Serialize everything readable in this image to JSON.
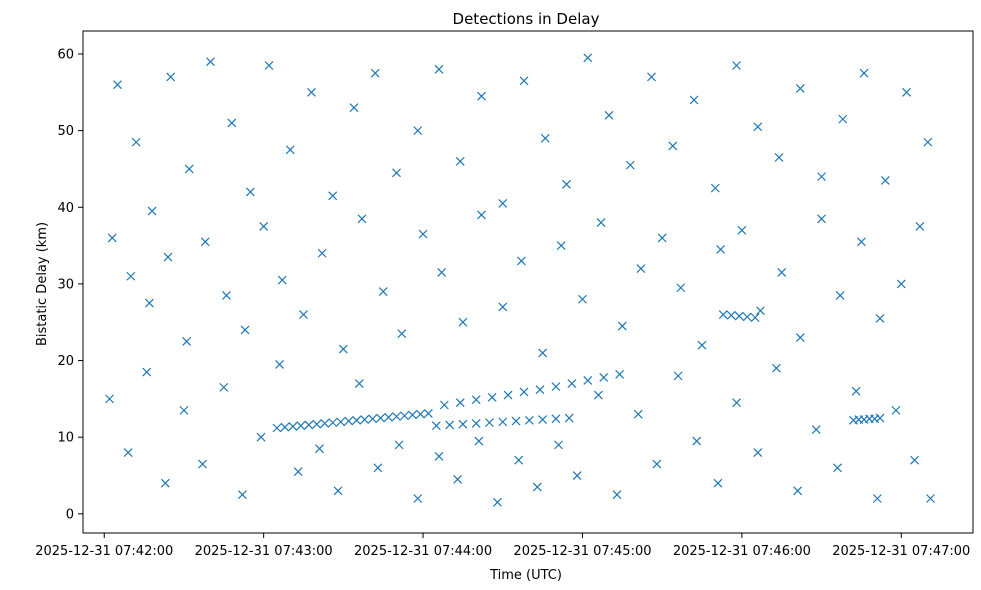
{
  "chart_data": {
    "type": "scatter",
    "title": "Detections in Delay",
    "xlabel": "Time (UTC)",
    "ylabel": "Bistatic Delay (km)",
    "xlim": [
      "2025-12-31 07:41:52",
      "2025-12-31 07:47:27"
    ],
    "ylim": [
      -2.5,
      63
    ],
    "x_ticks": [
      "2025-12-31 07:42:00",
      "2025-12-31 07:43:00",
      "2025-12-31 07:44:00",
      "2025-12-31 07:45:00",
      "2025-12-31 07:46:00",
      "2025-12-31 07:47:00"
    ],
    "y_ticks": [
      0,
      10,
      20,
      30,
      40,
      50,
      60
    ],
    "marker": "x",
    "color": "#1f77b4",
    "grid": false,
    "series": [
      {
        "name": "",
        "points": [
          [
            "2025-12-31 07:43:05",
            11.2
          ],
          [
            "2025-12-31 07:43:08",
            11.3
          ],
          [
            "2025-12-31 07:43:11",
            11.4
          ],
          [
            "2025-12-31 07:43:14",
            11.5
          ],
          [
            "2025-12-31 07:43:17",
            11.6
          ],
          [
            "2025-12-31 07:43:20",
            11.7
          ],
          [
            "2025-12-31 07:43:23",
            11.8
          ],
          [
            "2025-12-31 07:43:26",
            11.9
          ],
          [
            "2025-12-31 07:43:29",
            12.0
          ],
          [
            "2025-12-31 07:43:32",
            12.1
          ],
          [
            "2025-12-31 07:43:35",
            12.2
          ],
          [
            "2025-12-31 07:43:38",
            12.3
          ],
          [
            "2025-12-31 07:43:41",
            12.4
          ],
          [
            "2025-12-31 07:43:44",
            12.5
          ],
          [
            "2025-12-31 07:43:47",
            12.6
          ],
          [
            "2025-12-31 07:43:50",
            12.7
          ],
          [
            "2025-12-31 07:43:53",
            12.8
          ],
          [
            "2025-12-31 07:43:56",
            12.9
          ],
          [
            "2025-12-31 07:43:59",
            13.0
          ],
          [
            "2025-12-31 07:44:02",
            13.1
          ],
          [
            "2025-12-31 07:44:05",
            11.5
          ],
          [
            "2025-12-31 07:44:10",
            11.6
          ],
          [
            "2025-12-31 07:44:15",
            11.7
          ],
          [
            "2025-12-31 07:44:20",
            11.8
          ],
          [
            "2025-12-31 07:44:25",
            11.9
          ],
          [
            "2025-12-31 07:44:30",
            12.0
          ],
          [
            "2025-12-31 07:44:35",
            12.1
          ],
          [
            "2025-12-31 07:44:40",
            12.2
          ],
          [
            "2025-12-31 07:44:45",
            12.3
          ],
          [
            "2025-12-31 07:44:50",
            12.4
          ],
          [
            "2025-12-31 07:44:55",
            12.5
          ],
          [
            "2025-12-31 07:44:08",
            14.2
          ],
          [
            "2025-12-31 07:44:14",
            14.5
          ],
          [
            "2025-12-31 07:44:20",
            14.9
          ],
          [
            "2025-12-31 07:44:26",
            15.2
          ],
          [
            "2025-12-31 07:44:32",
            15.5
          ],
          [
            "2025-12-31 07:44:38",
            15.9
          ],
          [
            "2025-12-31 07:44:44",
            16.2
          ],
          [
            "2025-12-31 07:44:50",
            16.6
          ],
          [
            "2025-12-31 07:44:56",
            17.0
          ],
          [
            "2025-12-31 07:45:02",
            17.4
          ],
          [
            "2025-12-31 07:45:08",
            17.8
          ],
          [
            "2025-12-31 07:45:14",
            18.2
          ],
          [
            "2025-12-31 07:45:53",
            26.0
          ],
          [
            "2025-12-31 07:45:56",
            25.9
          ],
          [
            "2025-12-31 07:45:59",
            25.8
          ],
          [
            "2025-12-31 07:46:02",
            25.7
          ],
          [
            "2025-12-31 07:46:05",
            25.6
          ],
          [
            "2025-12-31 07:46:42",
            12.2
          ],
          [
            "2025-12-31 07:46:44",
            12.3
          ],
          [
            "2025-12-31 07:46:46",
            12.3
          ],
          [
            "2025-12-31 07:46:48",
            12.4
          ],
          [
            "2025-12-31 07:46:50",
            12.4
          ],
          [
            "2025-12-31 07:46:52",
            12.5
          ],
          [
            "2025-12-31 07:42:05",
            56.0
          ],
          [
            "2025-12-31 07:42:12",
            48.5
          ],
          [
            "2025-12-31 07:42:18",
            39.5
          ],
          [
            "2025-12-31 07:42:25",
            57.0
          ],
          [
            "2025-12-31 07:42:32",
            45.0
          ],
          [
            "2025-12-31 07:42:40",
            59.0
          ],
          [
            "2025-12-31 07:42:48",
            51.0
          ],
          [
            "2025-12-31 07:42:55",
            42.0
          ],
          [
            "2025-12-31 07:43:02",
            58.5
          ],
          [
            "2025-12-31 07:43:10",
            47.5
          ],
          [
            "2025-12-31 07:43:18",
            55.0
          ],
          [
            "2025-12-31 07:43:26",
            41.5
          ],
          [
            "2025-12-31 07:43:34",
            53.0
          ],
          [
            "2025-12-31 07:43:42",
            57.5
          ],
          [
            "2025-12-31 07:43:50",
            44.5
          ],
          [
            "2025-12-31 07:43:58",
            50.0
          ],
          [
            "2025-12-31 07:44:06",
            58.0
          ],
          [
            "2025-12-31 07:44:14",
            46.0
          ],
          [
            "2025-12-31 07:44:22",
            54.5
          ],
          [
            "2025-12-31 07:44:30",
            40.5
          ],
          [
            "2025-12-31 07:44:38",
            56.5
          ],
          [
            "2025-12-31 07:44:46",
            49.0
          ],
          [
            "2025-12-31 07:44:54",
            43.0
          ],
          [
            "2025-12-31 07:45:02",
            59.5
          ],
          [
            "2025-12-31 07:45:10",
            52.0
          ],
          [
            "2025-12-31 07:45:18",
            45.5
          ],
          [
            "2025-12-31 07:45:26",
            57.0
          ],
          [
            "2025-12-31 07:45:34",
            48.0
          ],
          [
            "2025-12-31 07:45:42",
            54.0
          ],
          [
            "2025-12-31 07:45:50",
            42.5
          ],
          [
            "2025-12-31 07:45:58",
            58.5
          ],
          [
            "2025-12-31 07:46:06",
            50.5
          ],
          [
            "2025-12-31 07:46:14",
            46.5
          ],
          [
            "2025-12-31 07:46:22",
            55.5
          ],
          [
            "2025-12-31 07:46:30",
            44.0
          ],
          [
            "2025-12-31 07:46:38",
            51.5
          ],
          [
            "2025-12-31 07:46:46",
            57.5
          ],
          [
            "2025-12-31 07:46:54",
            43.5
          ],
          [
            "2025-12-31 07:47:02",
            55.0
          ],
          [
            "2025-12-31 07:47:10",
            48.5
          ],
          [
            "2025-12-31 07:42:03",
            36.0
          ],
          [
            "2025-12-31 07:42:10",
            31.0
          ],
          [
            "2025-12-31 07:42:17",
            27.5
          ],
          [
            "2025-12-31 07:42:24",
            33.5
          ],
          [
            "2025-12-31 07:42:31",
            22.5
          ],
          [
            "2025-12-31 07:42:38",
            35.5
          ],
          [
            "2025-12-31 07:42:46",
            28.5
          ],
          [
            "2025-12-31 07:42:53",
            24.0
          ],
          [
            "2025-12-31 07:43:00",
            37.5
          ],
          [
            "2025-12-31 07:43:07",
            30.5
          ],
          [
            "2025-12-31 07:43:15",
            26.0
          ],
          [
            "2025-12-31 07:43:22",
            34.0
          ],
          [
            "2025-12-31 07:43:30",
            21.5
          ],
          [
            "2025-12-31 07:43:37",
            38.5
          ],
          [
            "2025-12-31 07:43:45",
            29.0
          ],
          [
            "2025-12-31 07:43:52",
            23.5
          ],
          [
            "2025-12-31 07:44:00",
            36.5
          ],
          [
            "2025-12-31 07:44:07",
            31.5
          ],
          [
            "2025-12-31 07:44:15",
            25.0
          ],
          [
            "2025-12-31 07:44:22",
            39.0
          ],
          [
            "2025-12-31 07:44:30",
            27.0
          ],
          [
            "2025-12-31 07:44:37",
            33.0
          ],
          [
            "2025-12-31 07:44:45",
            21.0
          ],
          [
            "2025-12-31 07:44:52",
            35.0
          ],
          [
            "2025-12-31 07:45:00",
            28.0
          ],
          [
            "2025-12-31 07:45:07",
            38.0
          ],
          [
            "2025-12-31 07:45:15",
            24.5
          ],
          [
            "2025-12-31 07:45:22",
            32.0
          ],
          [
            "2025-12-31 07:45:30",
            36.0
          ],
          [
            "2025-12-31 07:45:37",
            29.5
          ],
          [
            "2025-12-31 07:45:45",
            22.0
          ],
          [
            "2025-12-31 07:45:52",
            34.5
          ],
          [
            "2025-12-31 07:46:00",
            37.0
          ],
          [
            "2025-12-31 07:46:07",
            26.5
          ],
          [
            "2025-12-31 07:46:15",
            31.5
          ],
          [
            "2025-12-31 07:46:22",
            23.0
          ],
          [
            "2025-12-31 07:46:30",
            38.5
          ],
          [
            "2025-12-31 07:46:37",
            28.5
          ],
          [
            "2025-12-31 07:46:45",
            35.5
          ],
          [
            "2025-12-31 07:46:52",
            25.5
          ],
          [
            "2025-12-31 07:47:00",
            30.0
          ],
          [
            "2025-12-31 07:47:07",
            37.5
          ],
          [
            "2025-12-31 07:42:02",
            15.0
          ],
          [
            "2025-12-31 07:42:09",
            8.0
          ],
          [
            "2025-12-31 07:42:16",
            18.5
          ],
          [
            "2025-12-31 07:42:23",
            4.0
          ],
          [
            "2025-12-31 07:42:30",
            13.5
          ],
          [
            "2025-12-31 07:42:37",
            6.5
          ],
          [
            "2025-12-31 07:42:45",
            16.5
          ],
          [
            "2025-12-31 07:42:52",
            2.5
          ],
          [
            "2025-12-31 07:42:59",
            10.0
          ],
          [
            "2025-12-31 07:43:06",
            19.5
          ],
          [
            "2025-12-31 07:43:13",
            5.5
          ],
          [
            "2025-12-31 07:43:21",
            8.5
          ],
          [
            "2025-12-31 07:43:28",
            3.0
          ],
          [
            "2025-12-31 07:43:36",
            17.0
          ],
          [
            "2025-12-31 07:43:43",
            6.0
          ],
          [
            "2025-12-31 07:43:51",
            9.0
          ],
          [
            "2025-12-31 07:43:58",
            2.0
          ],
          [
            "2025-12-31 07:44:06",
            7.5
          ],
          [
            "2025-12-31 07:44:13",
            4.5
          ],
          [
            "2025-12-31 07:44:21",
            9.5
          ],
          [
            "2025-12-31 07:44:28",
            1.5
          ],
          [
            "2025-12-31 07:44:36",
            7.0
          ],
          [
            "2025-12-31 07:44:43",
            3.5
          ],
          [
            "2025-12-31 07:44:51",
            9.0
          ],
          [
            "2025-12-31 07:44:58",
            5.0
          ],
          [
            "2025-12-31 07:45:06",
            15.5
          ],
          [
            "2025-12-31 07:45:13",
            2.5
          ],
          [
            "2025-12-31 07:45:21",
            13.0
          ],
          [
            "2025-12-31 07:45:28",
            6.5
          ],
          [
            "2025-12-31 07:45:36",
            18.0
          ],
          [
            "2025-12-31 07:45:43",
            9.5
          ],
          [
            "2025-12-31 07:45:51",
            4.0
          ],
          [
            "2025-12-31 07:45:58",
            14.5
          ],
          [
            "2025-12-31 07:46:06",
            8.0
          ],
          [
            "2025-12-31 07:46:13",
            19.0
          ],
          [
            "2025-12-31 07:46:21",
            3.0
          ],
          [
            "2025-12-31 07:46:28",
            11.0
          ],
          [
            "2025-12-31 07:46:36",
            6.0
          ],
          [
            "2025-12-31 07:46:43",
            16.0
          ],
          [
            "2025-12-31 07:46:51",
            2.0
          ],
          [
            "2025-12-31 07:46:58",
            13.5
          ],
          [
            "2025-12-31 07:47:05",
            7.0
          ],
          [
            "2025-12-31 07:47:11",
            2.0
          ]
        ]
      }
    ]
  }
}
